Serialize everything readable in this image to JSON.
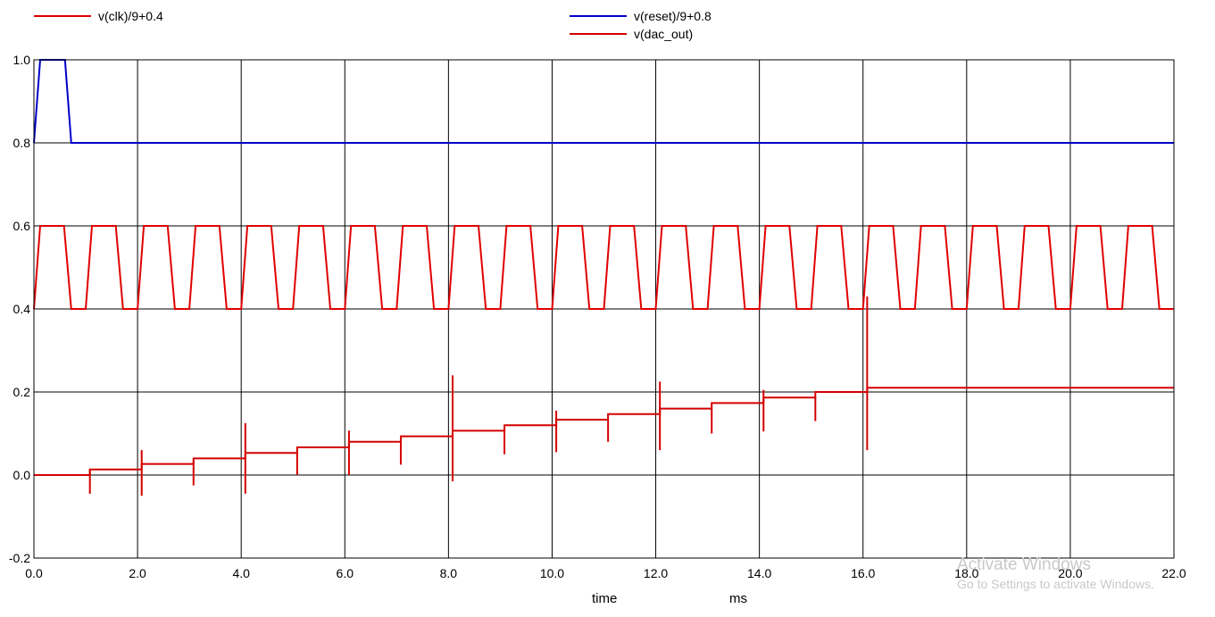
{
  "legend": [
    {
      "label": "v(clk)/9+0.4",
      "color": "#e00000"
    },
    {
      "label": "v(reset)/9+0.8",
      "color": "#0000c8"
    },
    {
      "label": "v(dac_out)",
      "color": "#d40000"
    }
  ],
  "axes": {
    "xlabel": "time",
    "xunit": "ms"
  },
  "watermark": {
    "title": "Activate Windows",
    "subtitle": "Go to Settings to activate Windows."
  },
  "chart_data": {
    "type": "line",
    "xlim": [
      0,
      22
    ],
    "ylim": [
      -0.2,
      1.0
    ],
    "grid": true,
    "legend_position": "top",
    "x_ticks": [
      "0.0",
      "2.0",
      "4.0",
      "6.0",
      "8.0",
      "10.0",
      "12.0",
      "14.0",
      "16.0",
      "18.0",
      "20.0",
      "22.0"
    ],
    "y_ticks": [
      "-0.2",
      "0.0",
      "0.2",
      "0.4",
      "0.6",
      "0.8",
      "1.0"
    ],
    "series": [
      {
        "name": "v(clk)/9+0.4",
        "color": "#e00000",
        "period": 1.0,
        "high": 0.6,
        "low": 0.4,
        "x": [
          0,
          0.12,
          0.58,
          0.72,
          1.0,
          1.12,
          1.58,
          1.72,
          2.0,
          2.12,
          2.58,
          2.72,
          3.0,
          3.12,
          3.58,
          3.72,
          4.0,
          4.12,
          4.58,
          4.72,
          5.0,
          5.12,
          5.58,
          5.72,
          6.0,
          6.12,
          6.58,
          6.72,
          7.0,
          7.12,
          7.58,
          7.72,
          8.0,
          8.12,
          8.58,
          8.72,
          9.0,
          9.12,
          9.58,
          9.72,
          10.0,
          10.12,
          10.58,
          10.72,
          11.0,
          11.12,
          11.58,
          11.72,
          12.0,
          12.12,
          12.58,
          12.72,
          13.0,
          13.12,
          13.58,
          13.72,
          14.0,
          14.12,
          14.58,
          14.72,
          15.0,
          15.12,
          15.58,
          15.72,
          16.0,
          16.12,
          16.58,
          16.72,
          17.0,
          17.12,
          17.58,
          17.72,
          18.0,
          18.12,
          18.58,
          18.72,
          19.0,
          19.12,
          19.58,
          19.72,
          20.0,
          20.12,
          20.58,
          20.72,
          21.0,
          21.12,
          21.58,
          21.72,
          22.0
        ],
        "y": [
          0.4,
          0.6,
          0.6,
          0.4,
          0.4,
          0.6,
          0.6,
          0.4,
          0.4,
          0.6,
          0.6,
          0.4,
          0.4,
          0.6,
          0.6,
          0.4,
          0.4,
          0.6,
          0.6,
          0.4,
          0.4,
          0.6,
          0.6,
          0.4,
          0.4,
          0.6,
          0.6,
          0.4,
          0.4,
          0.6,
          0.6,
          0.4,
          0.4,
          0.6,
          0.6,
          0.4,
          0.4,
          0.6,
          0.6,
          0.4,
          0.4,
          0.6,
          0.6,
          0.4,
          0.4,
          0.6,
          0.6,
          0.4,
          0.4,
          0.6,
          0.6,
          0.4,
          0.4,
          0.6,
          0.6,
          0.4,
          0.4,
          0.6,
          0.6,
          0.4,
          0.4,
          0.6,
          0.6,
          0.4,
          0.4,
          0.6,
          0.6,
          0.4,
          0.4,
          0.6,
          0.6,
          0.4,
          0.4,
          0.6,
          0.6,
          0.4,
          0.4,
          0.6,
          0.6,
          0.4,
          0.4,
          0.6,
          0.6,
          0.4,
          0.4,
          0.6,
          0.6,
          0.4,
          0.4
        ]
      },
      {
        "name": "v(reset)/9+0.8",
        "color": "#0000c8",
        "x": [
          0,
          0.12,
          0.6,
          0.72,
          22.0
        ],
        "y": [
          0.8,
          1.0,
          1.0,
          0.8,
          0.8
        ]
      },
      {
        "name": "v(dac_out)",
        "color": "#d40000",
        "steps": [
          {
            "t": 0,
            "v": 0.0
          },
          {
            "t": 1.08,
            "v": 0.0133
          },
          {
            "t": 2.08,
            "v": 0.0267
          },
          {
            "t": 3.08,
            "v": 0.04
          },
          {
            "t": 4.08,
            "v": 0.0533
          },
          {
            "t": 5.08,
            "v": 0.0667
          },
          {
            "t": 6.08,
            "v": 0.08
          },
          {
            "t": 7.08,
            "v": 0.0933
          },
          {
            "t": 8.08,
            "v": 0.1067
          },
          {
            "t": 9.08,
            "v": 0.12
          },
          {
            "t": 10.08,
            "v": 0.1333
          },
          {
            "t": 11.08,
            "v": 0.1467
          },
          {
            "t": 12.08,
            "v": 0.16
          },
          {
            "t": 13.08,
            "v": 0.1733
          },
          {
            "t": 14.08,
            "v": 0.1867
          },
          {
            "t": 15.08,
            "v": 0.2
          },
          {
            "t": 16.08,
            "v": 0.21
          }
        ],
        "glitches": [
          {
            "t": 1.08,
            "min": -0.045,
            "max": 0.013
          },
          {
            "t": 2.08,
            "min": -0.05,
            "max": 0.06
          },
          {
            "t": 3.08,
            "min": -0.025,
            "max": 0.035
          },
          {
            "t": 4.08,
            "min": -0.045,
            "max": 0.125
          },
          {
            "t": 5.08,
            "min": 0.0,
            "max": 0.053
          },
          {
            "t": 6.08,
            "min": 0.0,
            "max": 0.107
          },
          {
            "t": 7.08,
            "min": 0.025,
            "max": 0.08
          },
          {
            "t": 8.08,
            "min": -0.015,
            "max": 0.24
          },
          {
            "t": 9.08,
            "min": 0.05,
            "max": 0.107
          },
          {
            "t": 10.08,
            "min": 0.055,
            "max": 0.155
          },
          {
            "t": 11.08,
            "min": 0.08,
            "max": 0.133
          },
          {
            "t": 12.08,
            "min": 0.06,
            "max": 0.225
          },
          {
            "t": 13.08,
            "min": 0.1,
            "max": 0.16
          },
          {
            "t": 14.08,
            "min": 0.105,
            "max": 0.205
          },
          {
            "t": 15.08,
            "min": 0.13,
            "max": 0.187
          },
          {
            "t": 16.08,
            "min": 0.06,
            "max": 0.43
          }
        ]
      }
    ]
  }
}
